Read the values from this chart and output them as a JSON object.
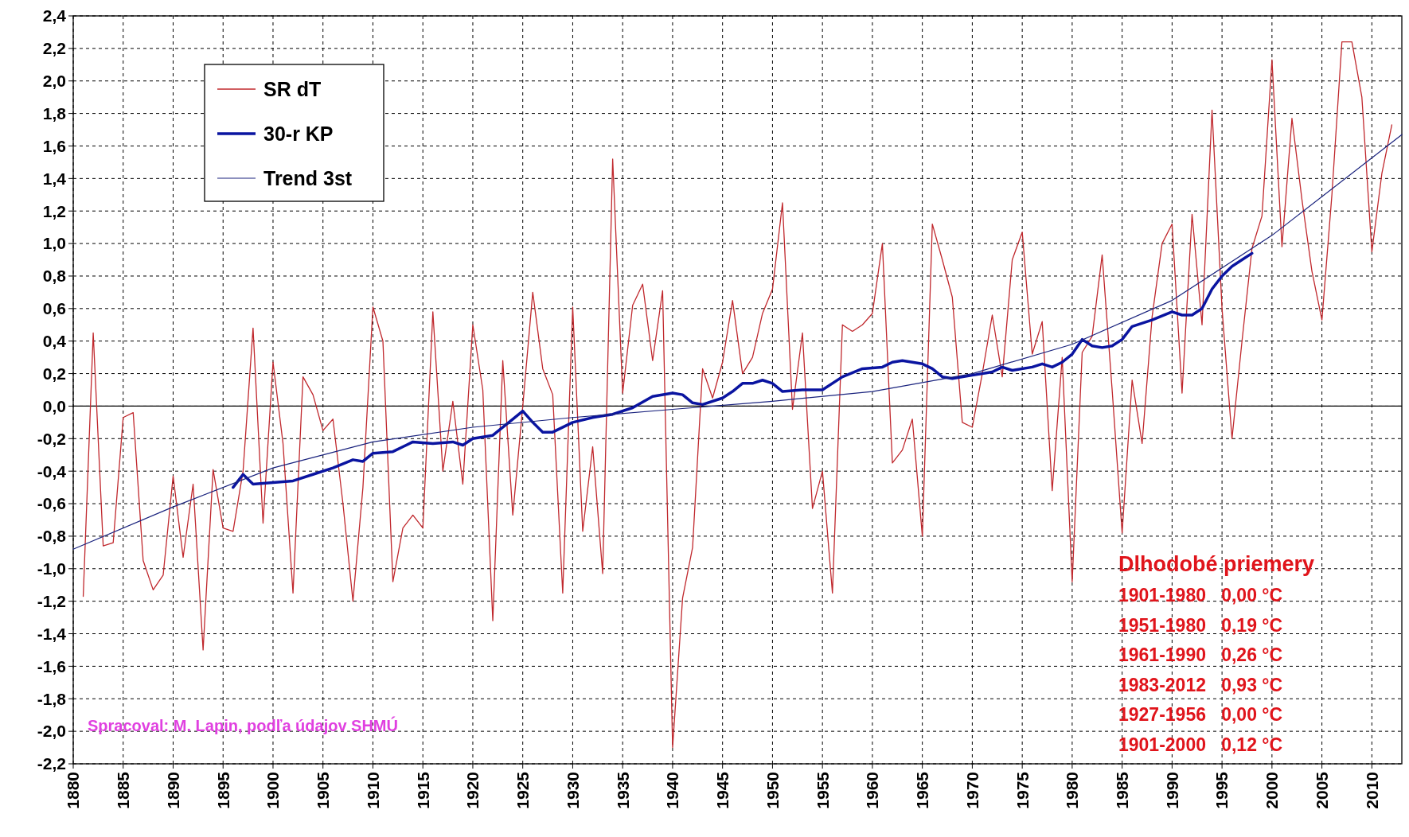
{
  "chart_data": {
    "type": "line",
    "x": [
      1881,
      1882,
      1883,
      1884,
      1885,
      1886,
      1887,
      1888,
      1889,
      1890,
      1891,
      1892,
      1893,
      1894,
      1895,
      1896,
      1897,
      1898,
      1899,
      1900,
      1901,
      1902,
      1903,
      1904,
      1905,
      1906,
      1907,
      1908,
      1909,
      1910,
      1911,
      1912,
      1913,
      1914,
      1915,
      1916,
      1917,
      1918,
      1919,
      1920,
      1921,
      1922,
      1923,
      1924,
      1925,
      1926,
      1927,
      1928,
      1929,
      1930,
      1931,
      1932,
      1933,
      1934,
      1935,
      1936,
      1937,
      1938,
      1939,
      1940,
      1941,
      1942,
      1943,
      1944,
      1945,
      1946,
      1947,
      1948,
      1949,
      1950,
      1951,
      1952,
      1953,
      1954,
      1955,
      1956,
      1957,
      1958,
      1959,
      1960,
      1961,
      1962,
      1963,
      1964,
      1965,
      1966,
      1967,
      1968,
      1969,
      1970,
      1971,
      1972,
      1973,
      1974,
      1975,
      1976,
      1977,
      1978,
      1979,
      1980,
      1981,
      1982,
      1983,
      1984,
      1985,
      1986,
      1987,
      1988,
      1989,
      1990,
      1991,
      1992,
      1993,
      1994,
      1995,
      1996,
      1997,
      1998,
      1999,
      2000,
      2001,
      2002,
      2003,
      2004,
      2005,
      2006,
      2007,
      2008,
      2009,
      2010,
      2011,
      2012
    ],
    "series": [
      {
        "name": "SR dT",
        "color": "#c0282d",
        "values": [
          -1.17,
          0.45,
          -0.86,
          -0.84,
          -0.07,
          -0.04,
          -0.95,
          -1.13,
          -1.04,
          -0.43,
          -0.93,
          -0.48,
          -1.5,
          -0.39,
          -0.75,
          -0.77,
          -0.4,
          0.48,
          -0.72,
          0.27,
          -0.23,
          -1.15,
          0.18,
          0.07,
          -0.15,
          -0.08,
          -0.6,
          -1.2,
          -0.5,
          0.61,
          0.4,
          -1.08,
          -0.75,
          -0.67,
          -0.75,
          0.58,
          -0.4,
          0.03,
          -0.48,
          0.5,
          0.1,
          -1.32,
          0.28,
          -0.67,
          0.0,
          0.7,
          0.23,
          0.07,
          -1.15,
          0.61,
          -0.77,
          -0.25,
          -1.03,
          1.52,
          0.08,
          0.62,
          0.75,
          0.28,
          0.71,
          -2.1,
          -1.18,
          -0.87,
          0.23,
          0.05,
          0.27,
          0.65,
          0.2,
          0.3,
          0.57,
          0.72,
          1.25,
          -0.02,
          0.45,
          -0.63,
          -0.4,
          -1.15,
          0.5,
          0.46,
          0.5,
          0.57,
          1.0,
          -0.35,
          -0.27,
          -0.08,
          -0.8,
          1.12,
          0.9,
          0.67,
          -0.1,
          -0.13,
          0.2,
          0.56,
          0.18,
          0.9,
          1.07,
          0.32,
          0.52,
          -0.52,
          0.3,
          -1.08,
          0.33,
          0.43,
          0.93,
          0.1,
          -0.78,
          0.16,
          -0.23,
          0.55,
          1.0,
          1.12,
          0.08,
          1.18,
          0.5,
          1.82,
          0.6,
          -0.2,
          0.4,
          0.97,
          1.17,
          2.13,
          0.98,
          1.77,
          1.27,
          0.83,
          0.53,
          1.3,
          2.24,
          2.24,
          1.9,
          0.95,
          1.43,
          1.73
        ]
      },
      {
        "name": "30-r KP",
        "color": "#0a14a0",
        "x": [
          1896,
          1897,
          1898,
          1900,
          1902,
          1904,
          1906,
          1908,
          1909,
          1910,
          1912,
          1914,
          1916,
          1918,
          1919,
          1920,
          1922,
          1924,
          1925,
          1926,
          1927,
          1928,
          1930,
          1932,
          1934,
          1936,
          1938,
          1940,
          1941,
          1942,
          1943,
          1945,
          1946,
          1947,
          1948,
          1949,
          1950,
          1951,
          1953,
          1955,
          1957,
          1959,
          1961,
          1962,
          1963,
          1964,
          1965,
          1966,
          1967,
          1968,
          1970,
          1972,
          1973,
          1974,
          1976,
          1977,
          1978,
          1979,
          1980,
          1981,
          1982,
          1983,
          1984,
          1985,
          1986,
          1988,
          1990,
          1991,
          1992,
          1993,
          1994,
          1995,
          1996,
          1997,
          1998
        ],
        "values": [
          -0.5,
          -0.42,
          -0.48,
          -0.47,
          -0.46,
          -0.42,
          -0.38,
          -0.33,
          -0.34,
          -0.29,
          -0.28,
          -0.22,
          -0.23,
          -0.22,
          -0.24,
          -0.2,
          -0.18,
          -0.08,
          -0.03,
          -0.1,
          -0.16,
          -0.16,
          -0.1,
          -0.07,
          -0.05,
          -0.01,
          0.06,
          0.08,
          0.07,
          0.02,
          0.01,
          0.05,
          0.09,
          0.14,
          0.14,
          0.16,
          0.14,
          0.09,
          0.1,
          0.1,
          0.18,
          0.23,
          0.24,
          0.27,
          0.28,
          0.27,
          0.26,
          0.23,
          0.18,
          0.17,
          0.19,
          0.21,
          0.24,
          0.22,
          0.24,
          0.26,
          0.24,
          0.27,
          0.32,
          0.41,
          0.37,
          0.36,
          0.37,
          0.41,
          0.49,
          0.53,
          0.58,
          0.56,
          0.56,
          0.6,
          0.72,
          0.8,
          0.86,
          0.9,
          0.94
        ]
      },
      {
        "name": "Trend 3st",
        "color": "#1a237e",
        "x": [
          1880,
          1890,
          1900,
          1910,
          1920,
          1930,
          1940,
          1950,
          1960,
          1970,
          1980,
          1990,
          2000,
          2013
        ],
        "values": [
          -0.88,
          -0.62,
          -0.38,
          -0.22,
          -0.13,
          -0.07,
          -0.02,
          0.03,
          0.09,
          0.2,
          0.38,
          0.65,
          1.05,
          1.67
        ]
      }
    ],
    "xlim": [
      1880,
      2013
    ],
    "xticks": [
      1880,
      1885,
      1890,
      1895,
      1900,
      1905,
      1910,
      1915,
      1920,
      1925,
      1930,
      1935,
      1940,
      1945,
      1950,
      1955,
      1960,
      1965,
      1970,
      1975,
      1980,
      1985,
      1990,
      1995,
      2000,
      2005,
      2010
    ],
    "ylim": [
      -2.2,
      2.4
    ],
    "yticks": [
      {
        "value": -2.2,
        "label": "-2,2"
      },
      {
        "value": -2.0,
        "label": "-2,0"
      },
      {
        "value": -1.8,
        "label": "-1,8"
      },
      {
        "value": -1.6,
        "label": "-1,6"
      },
      {
        "value": -1.4,
        "label": "-1,4"
      },
      {
        "value": -1.2,
        "label": "-1,2"
      },
      {
        "value": -1.0,
        "label": "-1,0"
      },
      {
        "value": -0.8,
        "label": "-0,8"
      },
      {
        "value": -0.6,
        "label": "-0,6"
      },
      {
        "value": -0.4,
        "label": "-0,4"
      },
      {
        "value": -0.2,
        "label": "-0,2"
      },
      {
        "value": 0,
        "label": "0,0"
      },
      {
        "value": 0.2,
        "label": "0,2"
      },
      {
        "value": 0.4,
        "label": "0,4"
      },
      {
        "value": 0.6,
        "label": "0,6"
      },
      {
        "value": 0.8,
        "label": "0,8"
      },
      {
        "value": 1.0,
        "label": "1,0"
      },
      {
        "value": 1.2,
        "label": "1,2"
      },
      {
        "value": 1.4,
        "label": "1,4"
      },
      {
        "value": 1.6,
        "label": "1,6"
      },
      {
        "value": 1.8,
        "label": "1,8"
      },
      {
        "value": 2.0,
        "label": "2,0"
      },
      {
        "value": 2.2,
        "label": "2,2"
      },
      {
        "value": 2.4,
        "label": "2,4"
      }
    ],
    "grid": true,
    "legend": "top left",
    "marker": "none",
    "line_style": "solid",
    "ref_lines": [
      {
        "axis": "y",
        "value": 0,
        "color": "#000000"
      }
    ],
    "annotations": [
      "Spracoval: M. Lapin, podľa údajov SHMÚ",
      "Dlhodobé priemery",
      "1901-1980   0,00 °C",
      "1951-1980   0,19 °C",
      "1961-1990   0,26 °C",
      "1983-2012   0,93 °C",
      "1927-1956   0,00 °C",
      "1901-2000   0,12 °C"
    ]
  }
}
